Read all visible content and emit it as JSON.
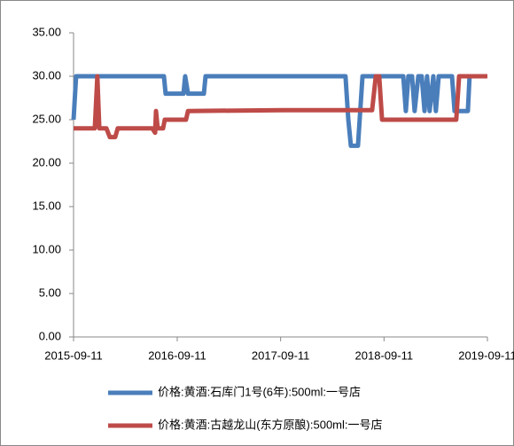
{
  "chart_data": {
    "type": "line",
    "xlim": [
      "2015-09-11",
      "2019-09-11"
    ],
    "xticks": [
      "2015-09-11",
      "2016-09-11",
      "2017-09-11",
      "2018-09-11",
      "2019-09-11"
    ],
    "ylim": [
      0,
      35
    ],
    "yticks": [
      {
        "value": 0,
        "label": "0.00"
      },
      {
        "value": 5,
        "label": "5.00"
      },
      {
        "value": 10,
        "label": "10.00"
      },
      {
        "value": 15,
        "label": "15.00"
      },
      {
        "value": 20,
        "label": "20.00"
      },
      {
        "value": 25,
        "label": "25.00"
      },
      {
        "value": 30,
        "label": "30.00"
      },
      {
        "value": 35,
        "label": "35.00"
      }
    ],
    "grid": false,
    "legend": "bottom",
    "series": [
      {
        "name": "价格:黄酒:石库门1号(6年):500ml:一号店",
        "color": "#4a7ebb",
        "x": [
          "2015-09-11",
          "2015-09-20",
          "2016-07-26",
          "2016-08-01",
          "2016-10-03",
          "2016-10-09",
          "2016-10-19",
          "2016-12-14",
          "2016-12-20",
          "2018-04-28",
          "2018-05-08",
          "2018-05-17",
          "2018-06-11",
          "2018-06-17",
          "2018-06-27",
          "2018-11-18",
          "2018-11-27",
          "2018-12-06",
          "2018-12-19",
          "2018-12-28",
          "2019-01-10",
          "2019-01-22",
          "2019-02-01",
          "2019-02-10",
          "2019-02-19",
          "2019-03-04",
          "2019-03-13",
          "2019-03-23",
          "2019-05-09",
          "2019-05-18",
          "2019-07-04",
          "2019-07-10",
          "2019-09-11"
        ],
        "values": [
          25,
          30,
          30,
          28,
          28,
          30,
          28,
          28,
          30,
          30,
          25,
          22,
          22,
          25,
          30,
          30,
          26,
          30,
          30,
          26,
          30,
          30,
          26,
          30,
          26,
          30,
          26,
          30,
          30,
          26,
          26,
          30,
          30
        ]
      },
      {
        "name": "价格:黄酒:古越龙山(东方原酿):500ml:一号店",
        "color": "#be4b48",
        "x": [
          "2015-09-11",
          "2015-11-25",
          "2015-12-04",
          "2015-12-11",
          "2016-01-05",
          "2016-01-17",
          "2016-02-05",
          "2016-02-14",
          "2016-06-15",
          "2016-06-25",
          "2016-06-28",
          "2016-07-04",
          "2016-07-23",
          "2016-07-29",
          "2016-10-12",
          "2016-10-19",
          "2017-09-21",
          "2018-07-31",
          "2018-08-13",
          "2018-08-25",
          "2018-09-04",
          "2019-05-24",
          "2019-06-03",
          "2019-09-11"
        ],
        "values": [
          24,
          24,
          30,
          24,
          24,
          23,
          23,
          24,
          24,
          23.5,
          26,
          24,
          24,
          25,
          25,
          26,
          26.1,
          26.1,
          30,
          30,
          25,
          25,
          30,
          30
        ]
      }
    ]
  }
}
